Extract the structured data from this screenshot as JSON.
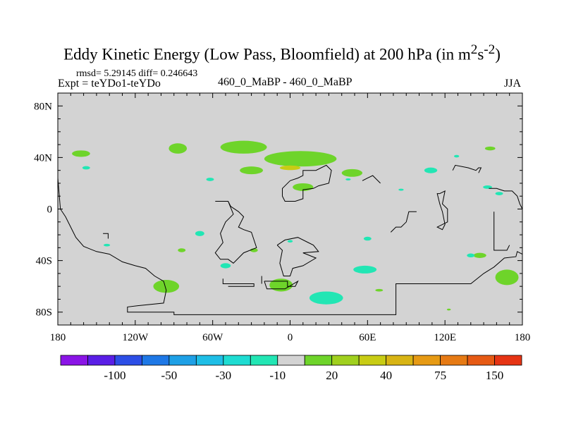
{
  "title": {
    "main": "Eddy Kinetic Energy (Low Pass, Bloomfield) at 200 hPa (in m",
    "sup1": "2",
    "mid": "s",
    "sup2": "-2",
    "close": ")"
  },
  "stats": "rmsd= 5.29145 diff= 0.246643",
  "expt": "Expt = teYDo1-teYDo",
  "subtitle": "460_0_MaBP - 460_0_MaBP",
  "season": "JJA",
  "chart_data": {
    "type": "heatmap",
    "projection": "cylindrical-equidistant",
    "background_value_color": "#d3d3d3",
    "xlim": [
      -180,
      180
    ],
    "ylim": [
      -90,
      90
    ],
    "xticks": [
      {
        "value": -180,
        "label": "180"
      },
      {
        "value": -120,
        "label": "120W"
      },
      {
        "value": -60,
        "label": "60W"
      },
      {
        "value": 0,
        "label": "0"
      },
      {
        "value": 60,
        "label": "60E"
      },
      {
        "value": 120,
        "label": "120E"
      },
      {
        "value": 180,
        "label": "180"
      }
    ],
    "yticks": [
      {
        "value": 80,
        "label": "80N"
      },
      {
        "value": 40,
        "label": "40N"
      },
      {
        "value": 0,
        "label": "0"
      },
      {
        "value": -40,
        "label": "40S"
      },
      {
        "value": -80,
        "label": "80S"
      }
    ],
    "colorbar": {
      "colors": [
        "#8a14e6",
        "#5a1ee6",
        "#2c4ee6",
        "#1e78e6",
        "#1ea0e6",
        "#1ebee6",
        "#1edcd2",
        "#22e6b4",
        "#d3d3d3",
        "#6ed42a",
        "#a0d01e",
        "#c8cc14",
        "#d8b414",
        "#e69a14",
        "#e67a14",
        "#e65a14",
        "#e63414"
      ],
      "labels": [
        {
          "after_box": 1,
          "text": "-100"
        },
        {
          "after_box": 3,
          "text": "-50"
        },
        {
          "after_box": 5,
          "text": "-30"
        },
        {
          "after_box": 7,
          "text": "-10"
        },
        {
          "after_box": 9,
          "text": "20"
        },
        {
          "after_box": 11,
          "text": "40"
        },
        {
          "after_box": 13,
          "text": "75"
        },
        {
          "after_box": 15,
          "text": "150"
        }
      ]
    },
    "anomaly_regions": [
      {
        "name": "pos-nh-pacific-west",
        "lon": -162,
        "lat": 43,
        "rlon": 7,
        "rlat": 2.5,
        "value": 12,
        "color": "#6ed42a"
      },
      {
        "name": "pos-nh-pacific-mid",
        "lon": -87,
        "lat": 47,
        "rlon": 7,
        "rlat": 4,
        "value": 12,
        "color": "#6ed42a"
      },
      {
        "name": "pos-nh-atlantic-north",
        "lon": -36,
        "lat": 48,
        "rlon": 18,
        "rlat": 5,
        "value": 12,
        "color": "#6ed42a"
      },
      {
        "name": "pos-nh-europe",
        "lon": 8,
        "lat": 39,
        "rlon": 28,
        "rlat": 6,
        "value": 12,
        "color": "#6ed42a"
      },
      {
        "name": "pos-nh-eurasia-core",
        "lon": 0,
        "lat": 32,
        "rlon": 8,
        "rlat": 1.8,
        "value": 30,
        "color": "#c8cc14"
      },
      {
        "name": "pos-nh-atlantic-left",
        "lon": -30,
        "lat": 30,
        "rlon": 9,
        "rlat": 3,
        "value": 12,
        "color": "#6ed42a"
      },
      {
        "name": "pos-nh-africa",
        "lon": 10,
        "lat": 17,
        "rlon": 8,
        "rlat": 3,
        "value": 12,
        "color": "#6ed42a"
      },
      {
        "name": "pos-nh-asia",
        "lon": 48,
        "lat": 28,
        "rlon": 8,
        "rlat": 3,
        "value": 12,
        "color": "#6ed42a"
      },
      {
        "name": "pos-nh-pacific-east",
        "lon": 155,
        "lat": 47,
        "rlon": 4,
        "rlat": 1.5,
        "value": 12,
        "color": "#6ed42a"
      },
      {
        "name": "pos-sh-pacific-east",
        "lon": -84,
        "lat": -32,
        "rlon": 3,
        "rlat": 1.5,
        "value": 12,
        "color": "#6ed42a"
      },
      {
        "name": "pos-sh-atlantic",
        "lon": -28,
        "lat": -32,
        "rlon": 3,
        "rlat": 1.5,
        "value": 12,
        "color": "#6ed42a"
      },
      {
        "name": "pos-sh-pacific-south",
        "lon": -96,
        "lat": -60,
        "rlon": 10,
        "rlat": 5,
        "value": 12,
        "color": "#6ed42a"
      },
      {
        "name": "pos-sh-atlantic-south",
        "lon": -7,
        "lat": -59,
        "rlon": 9,
        "rlat": 5,
        "value": 12,
        "color": "#6ed42a"
      },
      {
        "name": "pos-sh-indian-south",
        "lon": 69,
        "lat": -63,
        "rlon": 3,
        "rlat": 1,
        "value": 12,
        "color": "#6ed42a"
      },
      {
        "name": "pos-sh-australia",
        "lon": 147,
        "lat": -36,
        "rlon": 5,
        "rlat": 2,
        "value": 12,
        "color": "#6ed42a"
      },
      {
        "name": "pos-sh-pacific-se",
        "lon": 168,
        "lat": -53,
        "rlon": 9,
        "rlat": 6,
        "value": 12,
        "color": "#6ed42a"
      },
      {
        "name": "pos-sh-pacific-tiny",
        "lon": 123,
        "lat": -78,
        "rlon": 1.5,
        "rlat": 0.7,
        "value": 12,
        "color": "#6ed42a"
      },
      {
        "name": "neg-nh-pacific-west",
        "lon": -158,
        "lat": 32,
        "rlon": 3,
        "rlat": 1.3,
        "value": -15,
        "color": "#22e6b4"
      },
      {
        "name": "neg-nh-atlantic",
        "lon": -62,
        "lat": 23,
        "rlon": 3,
        "rlat": 1.3,
        "value": -15,
        "color": "#22e6b4"
      },
      {
        "name": "neg-nh-asia-tiny",
        "lon": 45,
        "lat": 23,
        "rlon": 2,
        "rlat": 0.8,
        "value": -15,
        "color": "#22e6b4"
      },
      {
        "name": "neg-nh-asia-east",
        "lon": 109,
        "lat": 30,
        "rlon": 5,
        "rlat": 2.2,
        "value": -15,
        "color": "#22e6b4"
      },
      {
        "name": "neg-nh-east-tiny",
        "lon": 129,
        "lat": 41,
        "rlon": 2,
        "rlat": 1,
        "value": -15,
        "color": "#22e6b4"
      },
      {
        "name": "neg-nh-pacific-east",
        "lon": 153,
        "lat": 17,
        "rlon": 3.5,
        "rlat": 1.3,
        "value": -15,
        "color": "#22e6b4"
      },
      {
        "name": "neg-nh-pacific-east2",
        "lon": 162,
        "lat": 12,
        "rlon": 3,
        "rlat": 1.3,
        "value": -15,
        "color": "#22e6b4"
      },
      {
        "name": "neg-nh-asia-tiny2",
        "lon": 86,
        "lat": 15,
        "rlon": 2,
        "rlat": 0.8,
        "value": -15,
        "color": "#22e6b4"
      },
      {
        "name": "neg-sh-pacific",
        "lon": -142,
        "lat": -28,
        "rlon": 2.5,
        "rlat": 1,
        "value": -15,
        "color": "#22e6b4"
      },
      {
        "name": "neg-sh-pacific-east",
        "lon": -70,
        "lat": -19,
        "rlon": 3.5,
        "rlat": 2,
        "value": -15,
        "color": "#22e6b4"
      },
      {
        "name": "neg-sh-atlantic",
        "lon": 0,
        "lat": -25,
        "rlon": 2,
        "rlat": 1,
        "value": -15,
        "color": "#22e6b4"
      },
      {
        "name": "neg-sh-indian",
        "lon": 60,
        "lat": -23,
        "rlon": 3,
        "rlat": 1.5,
        "value": -15,
        "color": "#22e6b4"
      },
      {
        "name": "neg-sh-atlantic-mid",
        "lon": -50,
        "lat": -44,
        "rlon": 4,
        "rlat": 2,
        "value": -15,
        "color": "#22e6b4"
      },
      {
        "name": "neg-sh-indian-south",
        "lon": 58,
        "lat": -47,
        "rlon": 9,
        "rlat": 3,
        "value": -15,
        "color": "#22e6b4"
      },
      {
        "name": "neg-sh-africa-south",
        "lon": 28,
        "lat": -69,
        "rlon": 13,
        "rlat": 5,
        "value": -15,
        "color": "#22e6b4"
      },
      {
        "name": "neg-sh-pacific-east2",
        "lon": 140,
        "lat": -36,
        "rlon": 3,
        "rlat": 1.5,
        "value": -15,
        "color": "#22e6b4"
      }
    ],
    "coastlines": [
      {
        "name": "coast-west-americas",
        "pts": [
          [
            -180,
            24
          ],
          [
            -178,
            0
          ],
          [
            -174,
            -6
          ],
          [
            -170,
            -14
          ],
          [
            -166,
            -22
          ],
          [
            -160,
            -29
          ],
          [
            -150,
            -33
          ],
          [
            -140,
            -35
          ],
          [
            -130,
            -41
          ],
          [
            -120,
            -44
          ],
          [
            -112,
            -46
          ],
          [
            -105,
            -52
          ],
          [
            -98,
            -56
          ],
          [
            -96,
            -63
          ],
          [
            -98,
            -73
          ],
          [
            -118,
            -75
          ],
          [
            -126,
            -76
          ],
          [
            -126,
            -80
          ],
          [
            -90,
            -80
          ],
          [
            -90,
            -82
          ],
          [
            82,
            -82
          ],
          [
            82,
            -58
          ],
          [
            140,
            -58
          ],
          [
            150,
            -50
          ],
          [
            158,
            -45
          ],
          [
            166,
            -38
          ],
          [
            175,
            -37
          ],
          [
            176,
            -33
          ],
          [
            180,
            -35
          ]
        ]
      },
      {
        "name": "coast-tiny-pacific",
        "pts": [
          [
            -145,
            -19
          ],
          [
            -141,
            -19
          ],
          [
            -141,
            -23
          ]
        ]
      },
      {
        "name": "coast-americas-east",
        "pts": [
          [
            -58,
            6
          ],
          [
            -48,
            6
          ],
          [
            -44,
            -4
          ],
          [
            -50,
            -10
          ],
          [
            -54,
            -19
          ],
          [
            -52,
            -26
          ],
          [
            -58,
            -34
          ],
          [
            -54,
            -39
          ],
          [
            -48,
            -39
          ],
          [
            -44,
            -42
          ],
          [
            -36,
            -34
          ],
          [
            -26,
            -30
          ],
          [
            -30,
            -18
          ],
          [
            -36,
            -16
          ],
          [
            -40,
            -14
          ],
          [
            -36,
            -6
          ],
          [
            -40,
            -2
          ],
          [
            -46,
            2
          ],
          [
            -48,
            6
          ]
        ]
      },
      {
        "name": "coast-patagonia",
        "pts": [
          [
            -52,
            -54
          ],
          [
            -52,
            -58
          ],
          [
            -28,
            -58
          ],
          [
            -28,
            -60
          ],
          [
            -48,
            -60
          ]
        ]
      },
      {
        "name": "coast-africa",
        "pts": [
          [
            0,
            22
          ],
          [
            6,
            24
          ],
          [
            10,
            26
          ],
          [
            10,
            30
          ],
          [
            20,
            30
          ],
          [
            28,
            34
          ],
          [
            32,
            30
          ],
          [
            30,
            20
          ],
          [
            22,
            18
          ],
          [
            18,
            16
          ],
          [
            10,
            15
          ],
          [
            10,
            8
          ],
          [
            4,
            6
          ],
          [
            -4,
            6
          ],
          [
            -6,
            10
          ],
          [
            -6,
            16
          ],
          [
            0,
            22
          ]
        ]
      },
      {
        "name": "coast-africa-tip",
        "pts": [
          [
            -10,
            -28
          ],
          [
            -4,
            -24
          ],
          [
            6,
            -22
          ],
          [
            14,
            -26
          ],
          [
            18,
            -28
          ],
          [
            22,
            -33
          ],
          [
            10,
            -34
          ],
          [
            20,
            -38
          ],
          [
            10,
            -44
          ],
          [
            2,
            -46
          ],
          [
            0,
            -52
          ],
          [
            -5,
            -52
          ],
          [
            -8,
            -42
          ],
          [
            -6,
            -32
          ],
          [
            -10,
            -28
          ]
        ]
      },
      {
        "name": "coast-antarctic-piece",
        "pts": [
          [
            -20,
            -56
          ],
          [
            -2,
            -56
          ],
          [
            -2,
            -60
          ],
          [
            4,
            -60
          ],
          [
            6,
            -56
          ],
          [
            -4,
            -62
          ],
          [
            -18,
            -62
          ],
          [
            -20,
            -56
          ]
        ]
      },
      {
        "name": "coast-asia-east",
        "pts": [
          [
            126,
            30
          ],
          [
            128,
            34
          ],
          [
            138,
            32
          ],
          [
            144,
            30
          ],
          [
            146,
            32
          ],
          [
            148,
            32
          ],
          [
            146,
            28
          ]
        ]
      },
      {
        "name": "coast-asia-mid",
        "pts": [
          [
            116,
            12
          ],
          [
            120,
            14
          ],
          [
            118,
            4
          ],
          [
            122,
            0
          ],
          [
            122,
            -10
          ],
          [
            114,
            -14
          ],
          [
            118,
            -16
          ],
          [
            120,
            -12
          ],
          [
            118,
            -2
          ],
          [
            116,
            4
          ],
          [
            114,
            12
          ],
          [
            116,
            12
          ]
        ]
      },
      {
        "name": "coast-pacific-east",
        "pts": [
          [
            154,
            16
          ],
          [
            160,
            16
          ],
          [
            166,
            14
          ],
          [
            172,
            14
          ],
          [
            176,
            10
          ],
          [
            178,
            4
          ],
          [
            180,
            0
          ]
        ]
      },
      {
        "name": "coast-pacific-east2",
        "pts": [
          [
            158,
            -2
          ],
          [
            158,
            -28
          ],
          [
            158,
            -32
          ],
          [
            168,
            -32
          ],
          [
            170,
            -28
          ]
        ]
      },
      {
        "name": "coast-pacific-mid",
        "pts": [
          [
            78,
            -18
          ],
          [
            82,
            -14
          ],
          [
            86,
            -14
          ],
          [
            90,
            -10
          ],
          [
            92,
            -2
          ],
          [
            98,
            -2
          ]
        ]
      },
      {
        "name": "coast-europe-east",
        "pts": [
          [
            56,
            22
          ],
          [
            60,
            24
          ],
          [
            64,
            26
          ],
          [
            70,
            20
          ]
        ]
      },
      {
        "name": "coast-atlantic-mid",
        "pts": [
          [
            -22,
            -52
          ],
          [
            -22,
            -58
          ]
        ]
      }
    ]
  }
}
